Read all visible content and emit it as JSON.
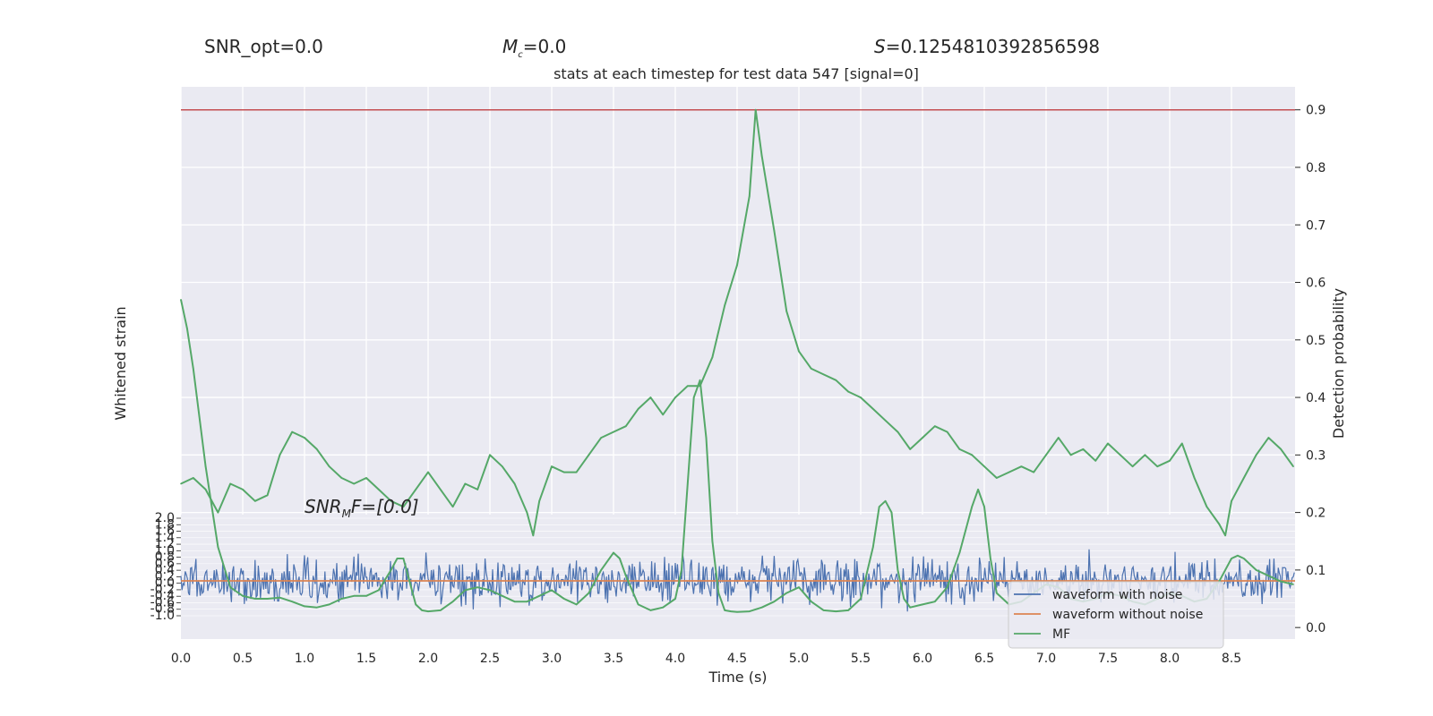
{
  "header": {
    "snr_opt": "SNR_opt=0.0",
    "mc_symbol": "M",
    "mc_sub": "c",
    "mc_value": "=0.0",
    "s_symbol": "S",
    "s_value": "=0.1254810392856598"
  },
  "chart_data": {
    "type": "line",
    "title": "stats at each timestep for test data 547 [signal=0]",
    "xlabel": "Time (s)",
    "ylabel_left": "Whitened strain",
    "ylabel_right": "Detection probability",
    "xlim": [
      0.0,
      9.0
    ],
    "xticks": [
      "0.0",
      "0.5",
      "1.0",
      "1.5",
      "2.0",
      "2.5",
      "3.0",
      "3.5",
      "4.0",
      "4.5",
      "5.0",
      "5.5",
      "6.0",
      "6.5",
      "7.0",
      "7.5",
      "8.0",
      "8.5"
    ],
    "ylim_right": [
      -0.02,
      0.94
    ],
    "yticks_right": [
      "0.0",
      "0.1",
      "0.2",
      "0.3",
      "0.4",
      "0.5",
      "0.6",
      "0.7",
      "0.8",
      "0.9"
    ],
    "threshold": 0.9,
    "left_inset": {
      "ylim": [
        -1.0,
        2.0
      ],
      "ytick_labels": [
        "2.0",
        "1.8",
        "1.6",
        "1.4",
        "1.2",
        "1.0",
        "0.8",
        "0.6",
        "0.4",
        "0.2",
        "0.0",
        "-0.2",
        "-0.4",
        "-0.6",
        "-0.8",
        "-1.0"
      ]
    },
    "annotation": {
      "symbol": "SNR",
      "sub": "M",
      "rest": "F=[0.0]"
    },
    "legend": {
      "position": "lower-right",
      "entries": [
        "waveform with noise",
        "waveform without noise",
        "MF"
      ]
    },
    "colors": {
      "noise": "#4c72b0",
      "template": "#dd8452",
      "prob": "#55a868",
      "threshold": "#c44e52",
      "background": "#eaeaf2"
    },
    "series": [
      {
        "name": "MF",
        "x": [
          0.0,
          0.05,
          0.1,
          0.2,
          0.3,
          0.4,
          0.5,
          0.6,
          0.7,
          0.8,
          0.9,
          1.0,
          1.1,
          1.2,
          1.3,
          1.4,
          1.5,
          1.6,
          1.7,
          1.75,
          1.8,
          1.85,
          1.9,
          1.95,
          2.0,
          2.1,
          2.2,
          2.3,
          2.4,
          2.5,
          2.6,
          2.7,
          2.8,
          2.9,
          3.0,
          3.1,
          3.2,
          3.3,
          3.4,
          3.5,
          3.55,
          3.6,
          3.7,
          3.8,
          3.9,
          4.0,
          4.05,
          4.1,
          4.15,
          4.2,
          4.25,
          4.3,
          4.35,
          4.4,
          4.45,
          4.5,
          4.6,
          4.7,
          4.8,
          4.9,
          5.0,
          5.1,
          5.2,
          5.3,
          5.4,
          5.5,
          5.6,
          5.65,
          5.7,
          5.75,
          5.8,
          5.85,
          5.9,
          6.0,
          6.1,
          6.2,
          6.3,
          6.4,
          6.45,
          6.5,
          6.55,
          6.6,
          6.7,
          6.8,
          6.9,
          7.0,
          7.1,
          7.2,
          7.3,
          7.4,
          7.5,
          7.6,
          7.7,
          7.8,
          7.9,
          8.0,
          8.1,
          8.2,
          8.3,
          8.4,
          8.5,
          8.55,
          8.6,
          8.7,
          8.8,
          8.9,
          9.0
        ],
        "y": [
          0.57,
          0.52,
          0.45,
          0.28,
          0.14,
          0.07,
          0.055,
          0.05,
          0.05,
          0.052,
          0.045,
          0.037,
          0.035,
          0.04,
          0.05,
          0.055,
          0.055,
          0.065,
          0.1,
          0.12,
          0.12,
          0.08,
          0.04,
          0.03,
          0.028,
          0.03,
          0.045,
          0.065,
          0.07,
          0.065,
          0.055,
          0.045,
          0.045,
          0.055,
          0.065,
          0.05,
          0.04,
          0.06,
          0.1,
          0.13,
          0.12,
          0.09,
          0.04,
          0.03,
          0.035,
          0.05,
          0.1,
          0.25,
          0.4,
          0.43,
          0.33,
          0.15,
          0.06,
          0.03,
          0.028,
          0.027,
          0.028,
          0.035,
          0.045,
          0.06,
          0.07,
          0.045,
          0.03,
          0.028,
          0.03,
          0.05,
          0.14,
          0.21,
          0.22,
          0.2,
          0.1,
          0.05,
          0.035,
          0.04,
          0.045,
          0.07,
          0.13,
          0.21,
          0.24,
          0.21,
          0.12,
          0.06,
          0.04,
          0.045,
          0.06,
          0.075,
          0.07,
          0.05,
          0.045,
          0.05,
          0.06,
          0.055,
          0.045,
          0.04,
          0.05,
          0.06,
          0.055,
          0.045,
          0.05,
          0.08,
          0.12,
          0.125,
          0.12,
          0.1,
          0.09,
          0.08,
          0.075
        ]
      },
      {
        "name": "Detection probability",
        "x": [
          0.0,
          0.1,
          0.2,
          0.3,
          0.4,
          0.5,
          0.6,
          0.7,
          0.8,
          0.9,
          1.0,
          1.1,
          1.2,
          1.3,
          1.4,
          1.5,
          1.6,
          1.7,
          1.8,
          1.9,
          2.0,
          2.1,
          2.2,
          2.3,
          2.4,
          2.5,
          2.6,
          2.7,
          2.8,
          2.85,
          2.9,
          3.0,
          3.1,
          3.2,
          3.3,
          3.4,
          3.5,
          3.6,
          3.7,
          3.8,
          3.9,
          4.0,
          4.1,
          4.2,
          4.3,
          4.4,
          4.5,
          4.6,
          4.65,
          4.7,
          4.8,
          4.9,
          5.0,
          5.1,
          5.2,
          5.3,
          5.4,
          5.5,
          5.6,
          5.7,
          5.8,
          5.9,
          6.0,
          6.1,
          6.2,
          6.3,
          6.4,
          6.5,
          6.6,
          6.7,
          6.8,
          6.9,
          7.0,
          7.1,
          7.2,
          7.3,
          7.4,
          7.5,
          7.6,
          7.7,
          7.8,
          7.9,
          8.0,
          8.1,
          8.2,
          8.3,
          8.4,
          8.45,
          8.5,
          8.6,
          8.7,
          8.8,
          8.9,
          9.0
        ],
        "y": [
          0.25,
          0.26,
          0.24,
          0.2,
          0.25,
          0.24,
          0.22,
          0.23,
          0.3,
          0.34,
          0.33,
          0.31,
          0.28,
          0.26,
          0.25,
          0.26,
          0.24,
          0.22,
          0.21,
          0.24,
          0.27,
          0.24,
          0.21,
          0.25,
          0.24,
          0.3,
          0.28,
          0.25,
          0.2,
          0.16,
          0.22,
          0.28,
          0.27,
          0.27,
          0.3,
          0.33,
          0.34,
          0.35,
          0.38,
          0.4,
          0.37,
          0.4,
          0.42,
          0.42,
          0.47,
          0.56,
          0.63,
          0.75,
          0.9,
          0.82,
          0.69,
          0.55,
          0.48,
          0.45,
          0.44,
          0.43,
          0.41,
          0.4,
          0.38,
          0.36,
          0.34,
          0.31,
          0.33,
          0.35,
          0.34,
          0.31,
          0.3,
          0.28,
          0.26,
          0.27,
          0.28,
          0.27,
          0.3,
          0.33,
          0.3,
          0.31,
          0.29,
          0.32,
          0.3,
          0.28,
          0.3,
          0.28,
          0.29,
          0.32,
          0.26,
          0.21,
          0.18,
          0.16,
          0.22,
          0.26,
          0.3,
          0.33,
          0.31,
          0.28
        ]
      }
    ]
  }
}
